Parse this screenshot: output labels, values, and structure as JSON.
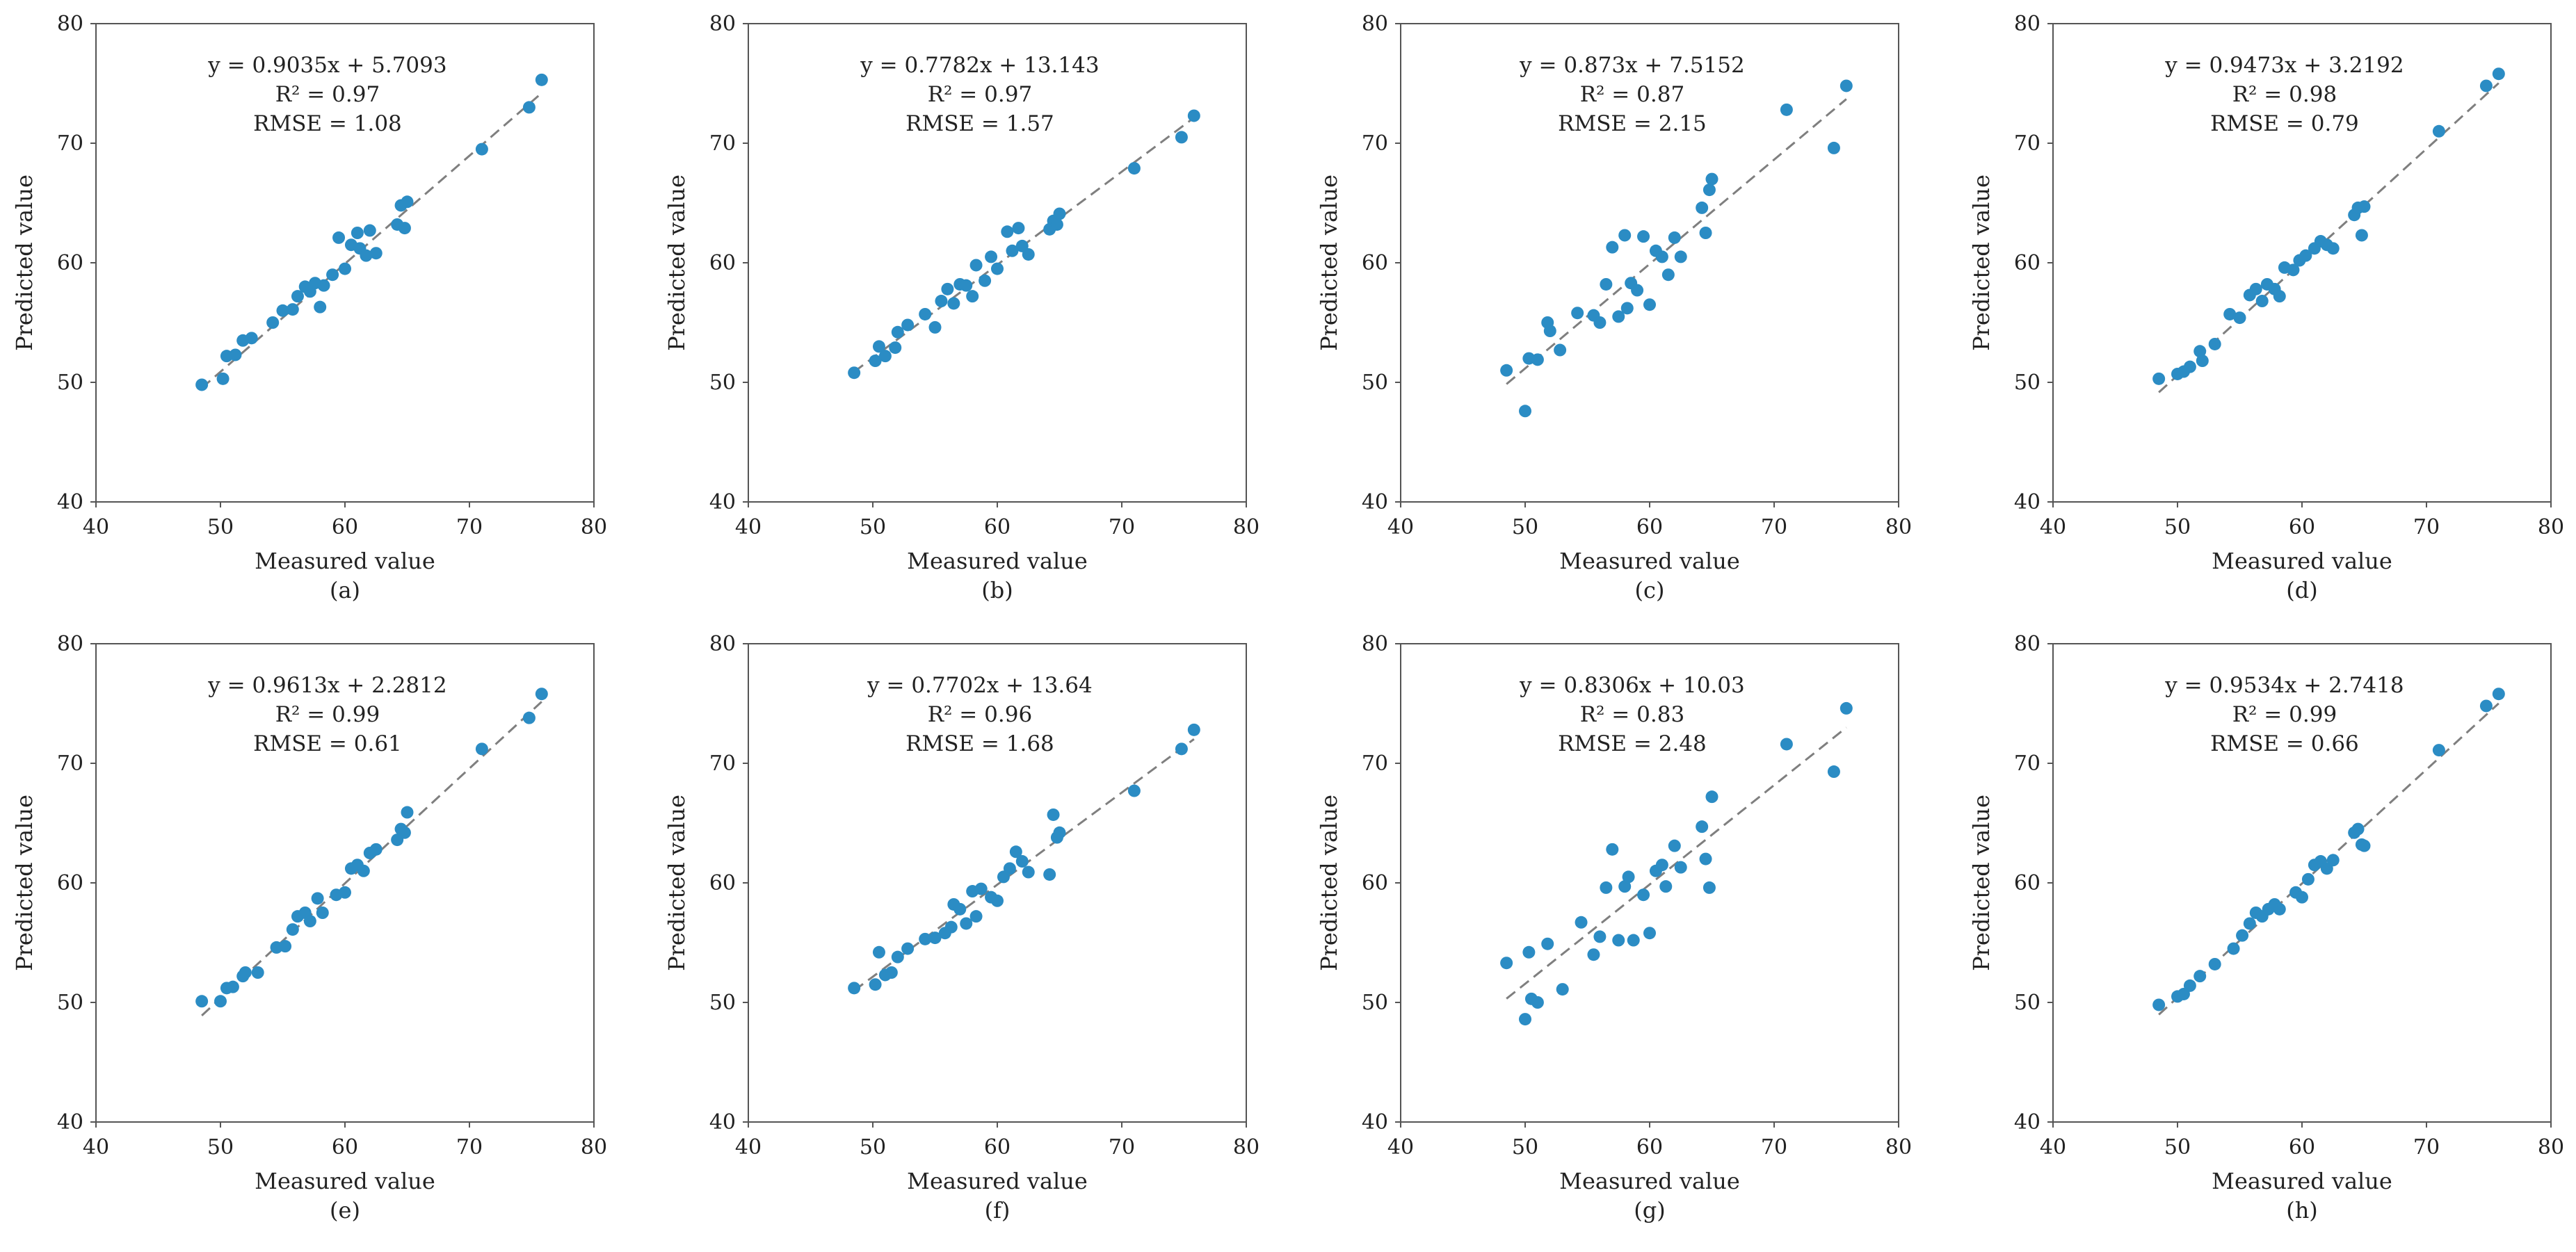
{
  "figure": {
    "xlabel": "Measured value",
    "ylabel": "Predicted value",
    "xlim": [
      40,
      80
    ],
    "ylim": [
      40,
      80
    ],
    "xticks": [
      "40",
      "50",
      "60",
      "70",
      "80"
    ],
    "yticks": [
      "40",
      "50",
      "60",
      "70",
      "80"
    ]
  },
  "colors": {
    "point": "#2b8cc4",
    "trendline": "#7f7f7f",
    "axis": "#555555"
  },
  "chart_data": [
    {
      "type": "scatter",
      "label": "(a)",
      "equation": "y = 0.9035x + 5.7093",
      "r2": "R² = 0.97",
      "rmse": "RMSE = 1.08",
      "slope": 0.9035,
      "intercept": 5.7093,
      "xlabel": "Measured value",
      "ylabel": "Predicted value",
      "xlim": [
        40,
        80
      ],
      "ylim": [
        40,
        80
      ],
      "points": [
        [
          48.5,
          49.8
        ],
        [
          50.2,
          50.3
        ],
        [
          50.5,
          52.2
        ],
        [
          51.2,
          52.3
        ],
        [
          51.8,
          53.5
        ],
        [
          52.5,
          53.7
        ],
        [
          54.2,
          55
        ],
        [
          55,
          56
        ],
        [
          55.8,
          56.1
        ],
        [
          56.2,
          57.2
        ],
        [
          56.8,
          58
        ],
        [
          57.2,
          57.6
        ],
        [
          57.6,
          58.3
        ],
        [
          58,
          56.3
        ],
        [
          58.3,
          58.1
        ],
        [
          59,
          59
        ],
        [
          59.5,
          62.1
        ],
        [
          60,
          59.5
        ],
        [
          60.5,
          61.5
        ],
        [
          61,
          62.5
        ],
        [
          61.2,
          61.2
        ],
        [
          61.7,
          60.6
        ],
        [
          62,
          62.7
        ],
        [
          62.5,
          60.8
        ],
        [
          64.2,
          63.2
        ],
        [
          64.5,
          64.8
        ],
        [
          64.8,
          62.9
        ],
        [
          65,
          65.1
        ],
        [
          71,
          69.5
        ],
        [
          74.8,
          73
        ],
        [
          75.8,
          75.3
        ]
      ]
    },
    {
      "type": "scatter",
      "label": "(b)",
      "equation": "y = 0.7782x + 13.143",
      "r2": "R² = 0.97",
      "rmse": "RMSE = 1.57",
      "slope": 0.7782,
      "intercept": 13.143,
      "xlabel": "Measured value",
      "ylabel": "Predicted value",
      "xlim": [
        40,
        80
      ],
      "ylim": [
        40,
        80
      ],
      "points": [
        [
          48.5,
          50.8
        ],
        [
          50.2,
          51.8
        ],
        [
          50.5,
          53
        ],
        [
          51,
          52.2
        ],
        [
          51.8,
          52.9
        ],
        [
          52,
          54.2
        ],
        [
          52.8,
          54.8
        ],
        [
          54.2,
          55.7
        ],
        [
          55,
          54.6
        ],
        [
          55.5,
          56.8
        ],
        [
          56,
          57.8
        ],
        [
          56.5,
          56.6
        ],
        [
          57,
          58.2
        ],
        [
          57.5,
          58.1
        ],
        [
          58,
          57.2
        ],
        [
          58.3,
          59.8
        ],
        [
          59,
          58.5
        ],
        [
          59.5,
          60.5
        ],
        [
          60,
          59.5
        ],
        [
          60.8,
          62.6
        ],
        [
          61.2,
          61
        ],
        [
          61.7,
          62.9
        ],
        [
          62,
          61.4
        ],
        [
          62.5,
          60.7
        ],
        [
          64.2,
          62.8
        ],
        [
          64.5,
          63.5
        ],
        [
          64.8,
          63.2
        ],
        [
          65,
          64.1
        ],
        [
          71,
          67.9
        ],
        [
          74.8,
          70.5
        ],
        [
          75.8,
          72.3
        ]
      ]
    },
    {
      "type": "scatter",
      "label": "(c)",
      "equation": "y = 0.873x + 7.5152",
      "r2": "R² = 0.87",
      "rmse": "RMSE = 2.15",
      "slope": 0.873,
      "intercept": 7.5152,
      "xlabel": "Measured value",
      "ylabel": "Predicted value",
      "xlim": [
        40,
        80
      ],
      "ylim": [
        40,
        80
      ],
      "points": [
        [
          48.5,
          51
        ],
        [
          50,
          47.6
        ],
        [
          50.3,
          52
        ],
        [
          51,
          51.9
        ],
        [
          51.8,
          55
        ],
        [
          52,
          54.3
        ],
        [
          52.8,
          52.7
        ],
        [
          54.2,
          55.8
        ],
        [
          55.5,
          55.6
        ],
        [
          56,
          55
        ],
        [
          56.5,
          58.2
        ],
        [
          57,
          61.3
        ],
        [
          57.5,
          55.5
        ],
        [
          58,
          62.3
        ],
        [
          58.2,
          56.2
        ],
        [
          58.5,
          58.3
        ],
        [
          59,
          57.7
        ],
        [
          59.5,
          62.2
        ],
        [
          60,
          56.5
        ],
        [
          60.5,
          61
        ],
        [
          61,
          60.5
        ],
        [
          61.5,
          59
        ],
        [
          62,
          62.1
        ],
        [
          62.5,
          60.5
        ],
        [
          64.2,
          64.6
        ],
        [
          64.5,
          62.5
        ],
        [
          64.8,
          66.1
        ],
        [
          65,
          67
        ],
        [
          71,
          72.8
        ],
        [
          74.8,
          69.6
        ],
        [
          75.8,
          74.8
        ]
      ]
    },
    {
      "type": "scatter",
      "label": "(d)",
      "equation": "y = 0.9473x + 3.2192",
      "r2": "R² = 0.98",
      "rmse": "RMSE = 0.79",
      "slope": 0.9473,
      "intercept": 3.2192,
      "xlabel": "Measured value",
      "ylabel": "Predicted value",
      "xlim": [
        40,
        80
      ],
      "ylim": [
        40,
        80
      ],
      "points": [
        [
          48.5,
          50.3
        ],
        [
          50,
          50.7
        ],
        [
          50.5,
          50.9
        ],
        [
          51,
          51.3
        ],
        [
          51.8,
          52.6
        ],
        [
          52,
          51.8
        ],
        [
          53,
          53.2
        ],
        [
          54.2,
          55.7
        ],
        [
          55,
          55.4
        ],
        [
          55.8,
          57.3
        ],
        [
          56.3,
          57.8
        ],
        [
          56.8,
          56.8
        ],
        [
          57.2,
          58.2
        ],
        [
          57.8,
          57.8
        ],
        [
          58.2,
          57.2
        ],
        [
          58.6,
          59.6
        ],
        [
          59.3,
          59.4
        ],
        [
          59.8,
          60.2
        ],
        [
          60.3,
          60.6
        ],
        [
          61,
          61.2
        ],
        [
          61.5,
          61.8
        ],
        [
          62,
          61.5
        ],
        [
          62.5,
          61.2
        ],
        [
          64.2,
          64
        ],
        [
          64.5,
          64.6
        ],
        [
          64.8,
          62.3
        ],
        [
          65,
          64.7
        ],
        [
          71,
          71
        ],
        [
          74.8,
          74.8
        ],
        [
          75.8,
          75.8
        ]
      ]
    },
    {
      "type": "scatter",
      "label": "(e)",
      "equation": "y = 0.9613x + 2.2812",
      "r2": "R² = 0.99",
      "rmse": "RMSE = 0.61",
      "slope": 0.9613,
      "intercept": 2.2812,
      "xlabel": "Measured value",
      "ylabel": "Predicted value",
      "xlim": [
        40,
        80
      ],
      "ylim": [
        40,
        80
      ],
      "points": [
        [
          48.5,
          50.1
        ],
        [
          50,
          50.1
        ],
        [
          50.5,
          51.2
        ],
        [
          51,
          51.3
        ],
        [
          51.8,
          52.2
        ],
        [
          52,
          52.5
        ],
        [
          53,
          52.5
        ],
        [
          54.5,
          54.6
        ],
        [
          55.2,
          54.7
        ],
        [
          55.8,
          56.1
        ],
        [
          56.2,
          57.2
        ],
        [
          56.8,
          57.5
        ],
        [
          57.2,
          56.8
        ],
        [
          57.8,
          58.7
        ],
        [
          58.2,
          57.5
        ],
        [
          59.3,
          59
        ],
        [
          60,
          59.2
        ],
        [
          60.5,
          61.2
        ],
        [
          61,
          61.5
        ],
        [
          61.5,
          61
        ],
        [
          62,
          62.5
        ],
        [
          62.5,
          62.8
        ],
        [
          64.2,
          63.6
        ],
        [
          64.5,
          64.5
        ],
        [
          64.8,
          64.2
        ],
        [
          65,
          65.9
        ],
        [
          71,
          71.2
        ],
        [
          74.8,
          73.8
        ],
        [
          75.8,
          75.8
        ]
      ]
    },
    {
      "type": "scatter",
      "label": "(f)",
      "equation": "y = 0.7702x + 13.64",
      "r2": "R² = 0.96",
      "rmse": "RMSE = 1.68",
      "slope": 0.7702,
      "intercept": 13.64,
      "xlabel": "Measured value",
      "ylabel": "Predicted value",
      "xlim": [
        40,
        80
      ],
      "ylim": [
        40,
        80
      ],
      "points": [
        [
          48.5,
          51.2
        ],
        [
          50.2,
          51.5
        ],
        [
          50.5,
          54.2
        ],
        [
          51,
          52.3
        ],
        [
          51.5,
          52.5
        ],
        [
          52,
          53.8
        ],
        [
          52.8,
          54.5
        ],
        [
          54.2,
          55.3
        ],
        [
          55,
          55.4
        ],
        [
          55.8,
          55.8
        ],
        [
          56.3,
          56.3
        ],
        [
          56.5,
          58.2
        ],
        [
          57,
          57.8
        ],
        [
          57.5,
          56.6
        ],
        [
          58,
          59.3
        ],
        [
          58.3,
          57.2
        ],
        [
          58.7,
          59.5
        ],
        [
          59.5,
          58.8
        ],
        [
          60,
          58.5
        ],
        [
          60.5,
          60.5
        ],
        [
          61,
          61.2
        ],
        [
          61.5,
          62.6
        ],
        [
          62,
          61.8
        ],
        [
          62.5,
          60.9
        ],
        [
          64.2,
          60.7
        ],
        [
          64.5,
          65.7
        ],
        [
          64.8,
          63.8
        ],
        [
          65,
          64.2
        ],
        [
          71,
          67.7
        ],
        [
          74.8,
          71.2
        ],
        [
          75.8,
          72.8
        ]
      ]
    },
    {
      "type": "scatter",
      "label": "(g)",
      "equation": "y = 0.8306x + 10.03",
      "r2": "R² = 0.83",
      "rmse": "RMSE = 2.48",
      "slope": 0.8306,
      "intercept": 10.03,
      "xlabel": "Measured value",
      "ylabel": "Predicted value",
      "xlim": [
        40,
        80
      ],
      "ylim": [
        40,
        80
      ],
      "points": [
        [
          48.5,
          53.3
        ],
        [
          50,
          48.6
        ],
        [
          50.3,
          54.2
        ],
        [
          50.5,
          50.3
        ],
        [
          51,
          50
        ],
        [
          51.8,
          54.9
        ],
        [
          53,
          51.1
        ],
        [
          54.5,
          56.7
        ],
        [
          55.5,
          54
        ],
        [
          56,
          55.5
        ],
        [
          56.5,
          59.6
        ],
        [
          57,
          62.8
        ],
        [
          57.5,
          55.2
        ],
        [
          58,
          59.7
        ],
        [
          58.3,
          60.5
        ],
        [
          58.7,
          55.2
        ],
        [
          59.5,
          59
        ],
        [
          60,
          55.8
        ],
        [
          60.5,
          61
        ],
        [
          61,
          61.5
        ],
        [
          61.3,
          59.7
        ],
        [
          62,
          63.1
        ],
        [
          62.5,
          61.3
        ],
        [
          64.2,
          64.7
        ],
        [
          64.5,
          62
        ],
        [
          64.8,
          59.6
        ],
        [
          65,
          67.2
        ],
        [
          71,
          71.6
        ],
        [
          74.8,
          69.3
        ],
        [
          75.8,
          74.6
        ]
      ]
    },
    {
      "type": "scatter",
      "label": "(h)",
      "equation": "y = 0.9534x + 2.7418",
      "r2": "R² = 0.99",
      "rmse": "RMSE = 0.66",
      "slope": 0.9534,
      "intercept": 2.7418,
      "xlabel": "Measured value",
      "ylabel": "Predicted value",
      "xlim": [
        40,
        80
      ],
      "ylim": [
        40,
        80
      ],
      "points": [
        [
          48.5,
          49.8
        ],
        [
          50,
          50.5
        ],
        [
          50.5,
          50.7
        ],
        [
          51,
          51.4
        ],
        [
          51.8,
          52.2
        ],
        [
          53,
          53.2
        ],
        [
          54.5,
          54.5
        ],
        [
          55.2,
          55.6
        ],
        [
          55.8,
          56.6
        ],
        [
          56.3,
          57.5
        ],
        [
          56.8,
          57.2
        ],
        [
          57.3,
          57.8
        ],
        [
          57.8,
          58.2
        ],
        [
          58.2,
          57.8
        ],
        [
          59.5,
          59.2
        ],
        [
          60,
          58.8
        ],
        [
          60.5,
          60.3
        ],
        [
          61,
          61.5
        ],
        [
          61.5,
          61.8
        ],
        [
          62,
          61.2
        ],
        [
          62.5,
          61.9
        ],
        [
          64.2,
          64.2
        ],
        [
          64.5,
          64.5
        ],
        [
          64.8,
          63.2
        ],
        [
          65,
          63.1
        ],
        [
          71,
          71.1
        ],
        [
          74.8,
          74.8
        ],
        [
          75.8,
          75.8
        ]
      ]
    }
  ]
}
